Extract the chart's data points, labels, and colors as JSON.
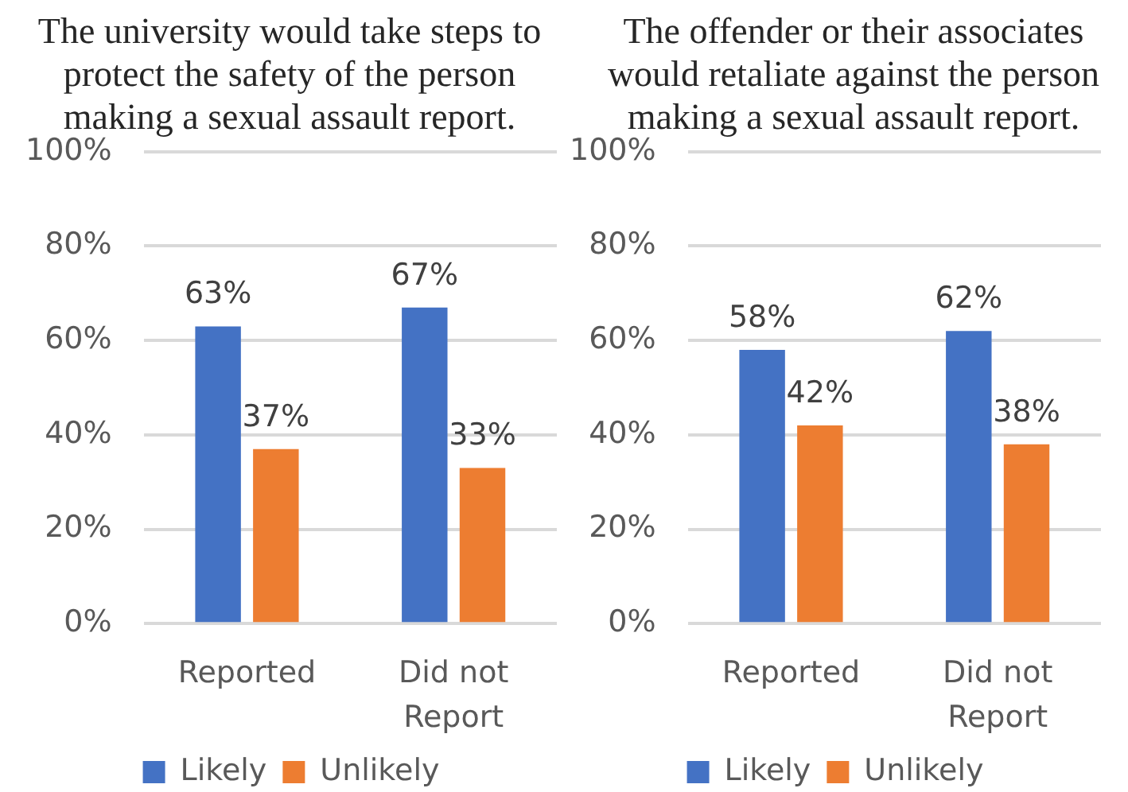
{
  "chart_data": [
    {
      "type": "bar",
      "title": "The university would take steps to protect the safety of the person making a sexual assault report.",
      "categories": [
        "Reported",
        "Did not Report"
      ],
      "series": [
        {
          "name": "Likely",
          "color": "#4472c4",
          "values": [
            63,
            67
          ],
          "value_labels": [
            "63%",
            "67%"
          ]
        },
        {
          "name": "Unlikely",
          "color": "#ed7d31",
          "values": [
            37,
            33
          ],
          "value_labels": [
            "37%",
            "33%"
          ]
        }
      ],
      "ylim": [
        0,
        100
      ],
      "yticks": [
        {
          "value": 0,
          "label": "0%"
        },
        {
          "value": 20,
          "label": "20%"
        },
        {
          "value": 40,
          "label": "40%"
        },
        {
          "value": 60,
          "label": "60%"
        },
        {
          "value": 80,
          "label": "80%"
        },
        {
          "value": 100,
          "label": "100%"
        }
      ],
      "grid": "y",
      "legend": "bottom"
    },
    {
      "type": "bar",
      "title": "The offender or their associates would retaliate against the person making a sexual assault report.",
      "categories": [
        "Reported",
        "Did not Report"
      ],
      "series": [
        {
          "name": "Likely",
          "color": "#4472c4",
          "values": [
            58,
            62
          ],
          "value_labels": [
            "58%",
            "62%"
          ]
        },
        {
          "name": "Unlikely",
          "color": "#ed7d31",
          "values": [
            42,
            38
          ],
          "value_labels": [
            "42%",
            "38%"
          ]
        }
      ],
      "ylim": [
        0,
        100
      ],
      "yticks": [
        {
          "value": 0,
          "label": "0%"
        },
        {
          "value": 20,
          "label": "20%"
        },
        {
          "value": 40,
          "label": "40%"
        },
        {
          "value": 60,
          "label": "60%"
        },
        {
          "value": 80,
          "label": "80%"
        },
        {
          "value": 100,
          "label": "100%"
        }
      ],
      "grid": "y",
      "legend": "bottom"
    }
  ]
}
